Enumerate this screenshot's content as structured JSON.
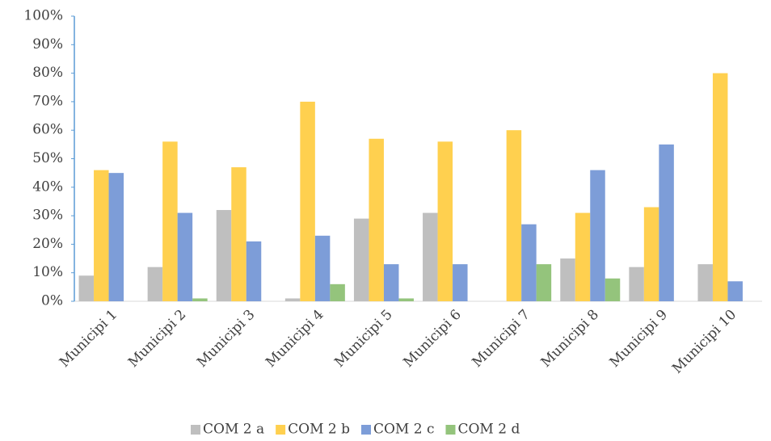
{
  "chart_data": {
    "type": "bar",
    "categories": [
      "Municipi 1",
      "Municipi 2",
      "Municipi 3",
      "Municipi 4",
      "Municipi 5",
      "Municipi 6",
      "Municipi 7",
      "Municipi 8",
      "Municipi 9",
      "Municipi 10"
    ],
    "series": [
      {
        "name": "COM 2 a",
        "color": "#bfbfbf",
        "values": [
          9,
          12,
          32,
          1,
          29,
          31,
          0,
          15,
          12,
          13
        ]
      },
      {
        "name": "COM 2 b",
        "color": "#ffd04f",
        "values": [
          46,
          56,
          47,
          70,
          57,
          56,
          60,
          31,
          33,
          80
        ]
      },
      {
        "name": "COM 2 c",
        "color": "#7d9dd8",
        "values": [
          45,
          31,
          21,
          23,
          13,
          13,
          27,
          46,
          55,
          7
        ]
      },
      {
        "name": "COM 2 d",
        "color": "#94c47c",
        "values": [
          0,
          1,
          0,
          6,
          1,
          0,
          13,
          8,
          0,
          0
        ]
      }
    ],
    "ylim": [
      0,
      100
    ],
    "yticks": [
      {
        "value": 0,
        "label": "0%"
      },
      {
        "value": 10,
        "label": "10%"
      },
      {
        "value": 20,
        "label": "20%"
      },
      {
        "value": 30,
        "label": "30%"
      },
      {
        "value": 40,
        "label": "40%"
      },
      {
        "value": 50,
        "label": "50%"
      },
      {
        "value": 60,
        "label": "60%"
      },
      {
        "value": 70,
        "label": "70%"
      },
      {
        "value": 80,
        "label": "80%"
      },
      {
        "value": 90,
        "label": "90%"
      },
      {
        "value": 100,
        "label": "100%"
      }
    ],
    "legend": "bottom"
  }
}
